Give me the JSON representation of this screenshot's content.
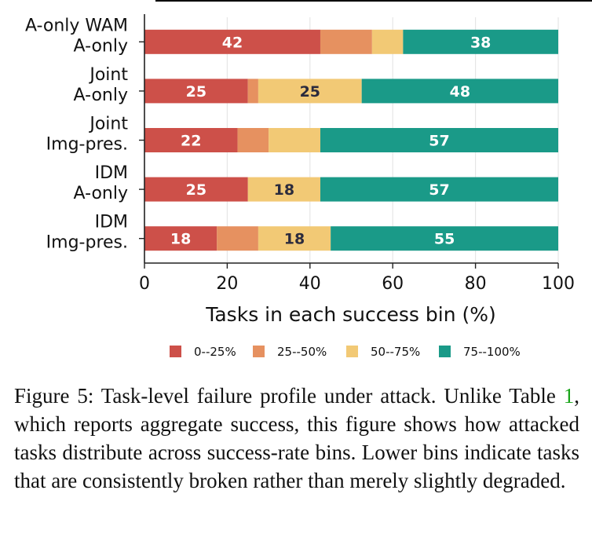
{
  "chart_data": {
    "type": "bar",
    "orientation": "horizontal",
    "stacked": true,
    "categories": [
      [
        "A-only WAM",
        "A-only"
      ],
      [
        "Joint",
        "A-only"
      ],
      [
        "Joint",
        "Img-pres."
      ],
      [
        "IDM",
        "A-only"
      ],
      [
        "IDM",
        "Img-pres."
      ]
    ],
    "series": [
      {
        "name": "0--25%",
        "color": "#cd5049",
        "values": [
          42.5,
          25,
          22.5,
          25,
          17.5
        ],
        "labels": [
          "42",
          "25",
          "22",
          "25",
          "18"
        ]
      },
      {
        "name": "25--50%",
        "color": "#e69160",
        "values": [
          12.5,
          2.5,
          7.5,
          0,
          10
        ],
        "labels": [
          "",
          "",
          "",
          "",
          ""
        ]
      },
      {
        "name": "50--75%",
        "color": "#f2c975",
        "values": [
          7.5,
          25,
          12.5,
          17.5,
          17.5
        ],
        "labels": [
          "",
          "25",
          "",
          "18",
          "18"
        ]
      },
      {
        "name": "75--100%",
        "color": "#1a9a88",
        "values": [
          37.5,
          47.5,
          57.5,
          57.5,
          55
        ],
        "labels": [
          "38",
          "48",
          "57",
          "57",
          "55"
        ]
      }
    ],
    "xlabel": "Tasks in each success bin (%)",
    "xlim": [
      0,
      100
    ],
    "xticks": [
      "0",
      "20",
      "40",
      "60",
      "80",
      "100"
    ],
    "grid": "vertical",
    "legend": "bottom"
  },
  "caption": {
    "prefix": "Figure 5: Task-level failure profile under attack. Unlike Table ",
    "ref": "1",
    "suffix": ", which reports aggregate success, this figure shows how attacked tasks distribute across success-rate bins. Lower bins indicate tasks that are consistently broken rather than merely slightly degraded."
  }
}
